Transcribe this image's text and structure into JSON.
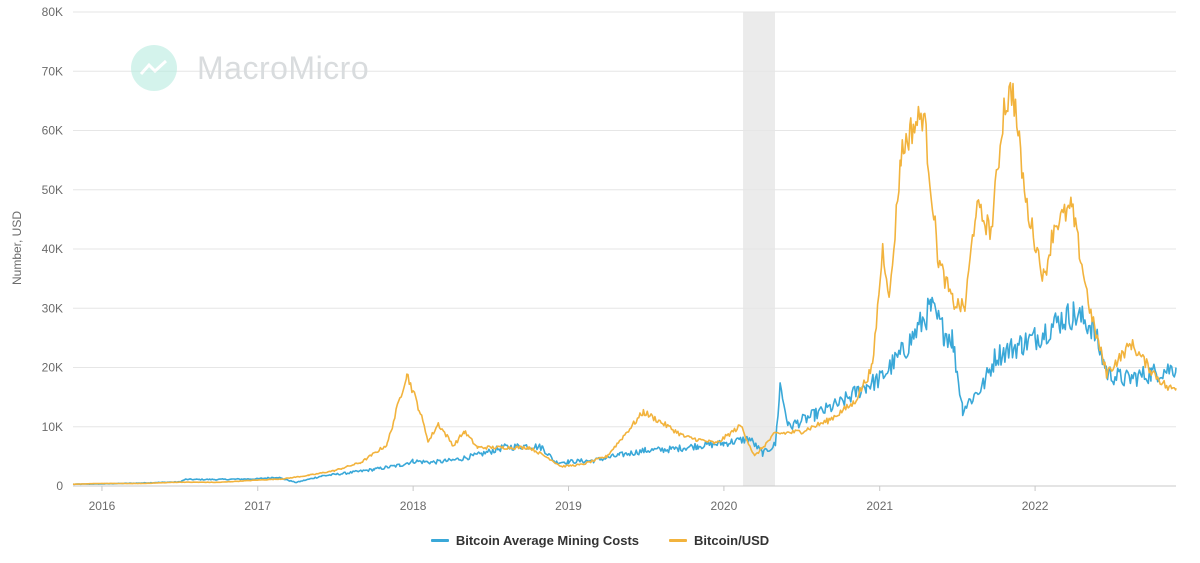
{
  "watermark": {
    "text": "MacroMicro"
  },
  "colors": {
    "mining": "#3aa8d8",
    "price": "#f2b33d",
    "grid": "#e6e6e6",
    "band": "#ebebeb"
  },
  "legend": [
    {
      "label": "Bitcoin Average Mining Costs",
      "color": "#3aa8d8"
    },
    {
      "label": "Bitcoin/USD",
      "color": "#f2b33d"
    }
  ],
  "chart_data": {
    "type": "line",
    "title": "",
    "ylabel": "Number, USD",
    "xlabel": "",
    "ylim": [
      0,
      80000
    ],
    "xlim": [
      "2015-10-25",
      "2022-11-28"
    ],
    "y_ticks": [
      0,
      10000,
      20000,
      30000,
      40000,
      50000,
      60000,
      70000,
      80000
    ],
    "y_tick_labels": [
      "0",
      "10K",
      "20K",
      "30K",
      "40K",
      "50K",
      "60K",
      "70K",
      "80K"
    ],
    "x_ticks": [
      "2016-01-01",
      "2017-01-01",
      "2018-01-01",
      "2019-01-01",
      "2020-01-01",
      "2021-01-01",
      "2022-01-01"
    ],
    "x_tick_labels": [
      "2016",
      "2017",
      "2018",
      "2019",
      "2020",
      "2021",
      "2022"
    ],
    "grid": true,
    "legend_position": "bottom",
    "shaded_periods": [
      {
        "start": "2020-02-15",
        "end": "2020-04-30"
      }
    ],
    "series": [
      {
        "name": "Bitcoin Average Mining Costs",
        "points": [
          [
            "2015-10-25",
            300
          ],
          [
            "2016-01-01",
            350
          ],
          [
            "2016-04-01",
            500
          ],
          [
            "2016-07-01",
            700
          ],
          [
            "2016-07-15",
            1100
          ],
          [
            "2016-10-01",
            1100
          ],
          [
            "2017-01-01",
            1200
          ],
          [
            "2017-02-15",
            1500
          ],
          [
            "2017-04-01",
            600
          ],
          [
            "2017-06-01",
            1700
          ],
          [
            "2017-08-01",
            2200
          ],
          [
            "2017-10-01",
            2800
          ],
          [
            "2017-12-01",
            3500
          ],
          [
            "2018-01-01",
            4200
          ],
          [
            "2018-02-15",
            4000
          ],
          [
            "2018-04-01",
            4300
          ],
          [
            "2018-06-01",
            5200
          ],
          [
            "2018-08-01",
            6500
          ],
          [
            "2018-10-01",
            6800
          ],
          [
            "2018-11-01",
            6500
          ],
          [
            "2018-12-01",
            4000
          ],
          [
            "2019-01-01",
            4100
          ],
          [
            "2019-03-01",
            4300
          ],
          [
            "2019-05-01",
            5200
          ],
          [
            "2019-07-01",
            6000
          ],
          [
            "2019-09-01",
            6200
          ],
          [
            "2019-11-01",
            6800
          ],
          [
            "2020-01-01",
            7200
          ],
          [
            "2020-03-01",
            8000
          ],
          [
            "2020-04-01",
            5500
          ],
          [
            "2020-05-01",
            7000
          ],
          [
            "2020-05-12",
            17000
          ],
          [
            "2020-06-01",
            10000
          ],
          [
            "2020-08-01",
            12000
          ],
          [
            "2020-10-01",
            14000
          ],
          [
            "2020-12-01",
            17000
          ],
          [
            "2021-01-01",
            18000
          ],
          [
            "2021-03-01",
            23000
          ],
          [
            "2021-05-01",
            30000
          ],
          [
            "2021-06-01",
            26000
          ],
          [
            "2021-06-20",
            25000
          ],
          [
            "2021-07-15",
            13000
          ],
          [
            "2021-09-01",
            17000
          ],
          [
            "2021-10-01",
            22000
          ],
          [
            "2021-12-01",
            24000
          ],
          [
            "2022-01-01",
            25000
          ],
          [
            "2022-03-01",
            28000
          ],
          [
            "2022-04-01",
            29000
          ],
          [
            "2022-05-15",
            27000
          ],
          [
            "2022-06-20",
            19000
          ],
          [
            "2022-08-01",
            18000
          ],
          [
            "2022-10-01",
            19000
          ],
          [
            "2022-11-28",
            20000
          ]
        ]
      },
      {
        "name": "Bitcoin/USD",
        "points": [
          [
            "2015-10-25",
            300
          ],
          [
            "2016-01-01",
            430
          ],
          [
            "2016-04-01",
            420
          ],
          [
            "2016-07-01",
            650
          ],
          [
            "2016-10-01",
            620
          ],
          [
            "2017-01-01",
            1000
          ],
          [
            "2017-03-01",
            1200
          ],
          [
            "2017-05-01",
            1800
          ],
          [
            "2017-07-01",
            2600
          ],
          [
            "2017-09-01",
            4000
          ],
          [
            "2017-11-01",
            7000
          ],
          [
            "2017-12-17",
            19000
          ],
          [
            "2018-01-15",
            13000
          ],
          [
            "2018-02-06",
            7500
          ],
          [
            "2018-03-01",
            10500
          ],
          [
            "2018-04-06",
            6800
          ],
          [
            "2018-05-01",
            9200
          ],
          [
            "2018-06-01",
            6500
          ],
          [
            "2018-08-01",
            6500
          ],
          [
            "2018-10-01",
            6500
          ],
          [
            "2018-11-20",
            4500
          ],
          [
            "2018-12-15",
            3300
          ],
          [
            "2019-02-01",
            3600
          ],
          [
            "2019-04-01",
            5000
          ],
          [
            "2019-06-26",
            12500
          ],
          [
            "2019-08-01",
            11000
          ],
          [
            "2019-10-01",
            8300
          ],
          [
            "2019-12-15",
            7200
          ],
          [
            "2020-02-10",
            10200
          ],
          [
            "2020-03-13",
            5000
          ],
          [
            "2020-04-30",
            8800
          ],
          [
            "2020-07-01",
            9200
          ],
          [
            "2020-09-01",
            11000
          ],
          [
            "2020-11-01",
            14000
          ],
          [
            "2020-12-15",
            20000
          ],
          [
            "2021-01-08",
            40000
          ],
          [
            "2021-01-25",
            32000
          ],
          [
            "2021-02-20",
            56000
          ],
          [
            "2021-03-15",
            60000
          ],
          [
            "2021-04-14",
            63000
          ],
          [
            "2021-05-19",
            38000
          ],
          [
            "2021-06-22",
            31000
          ],
          [
            "2021-07-20",
            30000
          ],
          [
            "2021-08-15",
            47000
          ],
          [
            "2021-09-20",
            43000
          ],
          [
            "2021-10-20",
            64000
          ],
          [
            "2021-11-10",
            67000
          ],
          [
            "2021-12-10",
            48000
          ],
          [
            "2022-01-22",
            35000
          ],
          [
            "2022-02-15",
            44000
          ],
          [
            "2022-03-28",
            47000
          ],
          [
            "2022-05-12",
            29000
          ],
          [
            "2022-06-18",
            19000
          ],
          [
            "2022-08-15",
            24000
          ],
          [
            "2022-10-01",
            19500
          ],
          [
            "2022-11-09",
            16500
          ],
          [
            "2022-11-28",
            16500
          ]
        ]
      }
    ]
  }
}
